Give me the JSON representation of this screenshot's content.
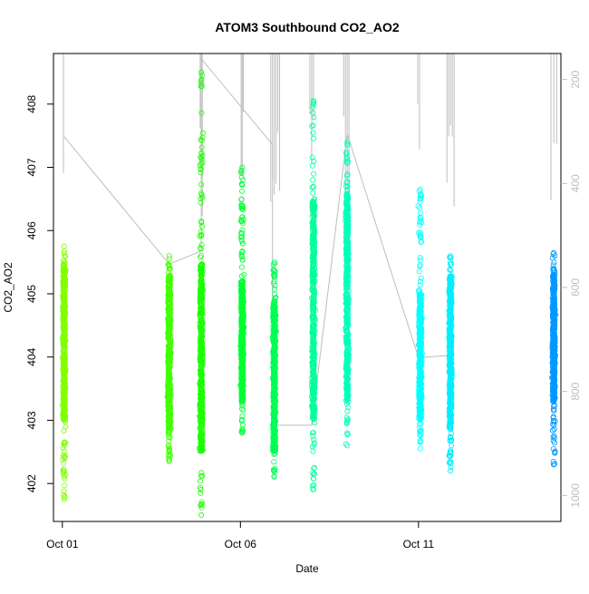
{
  "chart_data": {
    "type": "scatter",
    "title": "ATOM3 Southbound CO2_AO2",
    "xlabel": "Date",
    "ylabel": "CO2_AO2",
    "x_ticks": [
      "Oct 01",
      "Oct 06",
      "Oct 11"
    ],
    "x_tick_values": [
      1,
      6,
      11
    ],
    "xlim": [
      0.75,
      15.0
    ],
    "ylim": [
      401.4,
      408.8
    ],
    "y_ticks": [
      402,
      403,
      404,
      405,
      406,
      407,
      408
    ],
    "y2_ticks": [
      200,
      400,
      600,
      800,
      1000
    ],
    "y2lim": [
      1050,
      150
    ],
    "y2_reversed": true,
    "grid": false,
    "legend": "none",
    "series": [
      {
        "x": 1.05,
        "low": 401.75,
        "high": 405.75,
        "dense_low": 403.0,
        "dense_high": 405.5,
        "color": "#80ff00"
      },
      {
        "x": 4.0,
        "low": 402.35,
        "high": 405.6,
        "dense_low": 402.8,
        "dense_high": 405.3,
        "color": "#40ff00"
      },
      {
        "x": 4.9,
        "low": 401.5,
        "high": 408.5,
        "dense_low": 402.5,
        "dense_high": 405.5,
        "color": "#1aff00"
      },
      {
        "x": 6.05,
        "low": 402.8,
        "high": 407.0,
        "dense_low": 403.3,
        "dense_high": 405.2,
        "color": "#00ff33"
      },
      {
        "x": 6.95,
        "low": 402.1,
        "high": 405.5,
        "dense_low": 402.5,
        "dense_high": 404.9,
        "color": "#00ff55"
      },
      {
        "x": 8.05,
        "low": 401.9,
        "high": 408.05,
        "dense_low": 403.0,
        "dense_high": 406.5,
        "color": "#00ff99"
      },
      {
        "x": 9.0,
        "low": 402.6,
        "high": 407.4,
        "dense_low": 403.3,
        "dense_high": 406.6,
        "color": "#00ffbb"
      },
      {
        "x": 11.05,
        "low": 402.55,
        "high": 406.65,
        "dense_low": 403.0,
        "dense_high": 405.0,
        "color": "#00ffff"
      },
      {
        "x": 11.9,
        "low": 402.2,
        "high": 405.6,
        "dense_low": 402.9,
        "dense_high": 405.3,
        "color": "#00eeff"
      },
      {
        "x": 14.8,
        "low": 402.3,
        "high": 405.65,
        "dense_low": 403.3,
        "dense_high": 405.3,
        "color": "#0099ff"
      }
    ],
    "altitude_profile": {
      "color": "#bebebe",
      "vertical_lines": [
        1.03,
        4.87,
        4.9,
        4.93,
        6.02,
        6.05,
        6.08,
        6.85,
        6.9,
        6.95,
        7.0,
        7.05,
        7.1,
        7.95,
        8.0,
        8.05,
        8.9,
        8.95,
        9.0,
        9.05,
        10.98,
        11.03,
        11.8,
        11.85,
        11.9,
        11.95,
        12.0,
        14.72,
        14.8,
        14.88
      ],
      "polyline": [
        [
          1.05,
          310
        ],
        [
          4.0,
          555
        ],
        [
          4.9,
          530
        ],
        [
          4.9,
          160
        ],
        [
          6.9,
          325
        ],
        [
          6.9,
          865
        ],
        [
          8.0,
          865
        ],
        [
          9.0,
          305
        ],
        [
          11.0,
          735
        ],
        [
          12.0,
          730
        ]
      ]
    }
  }
}
